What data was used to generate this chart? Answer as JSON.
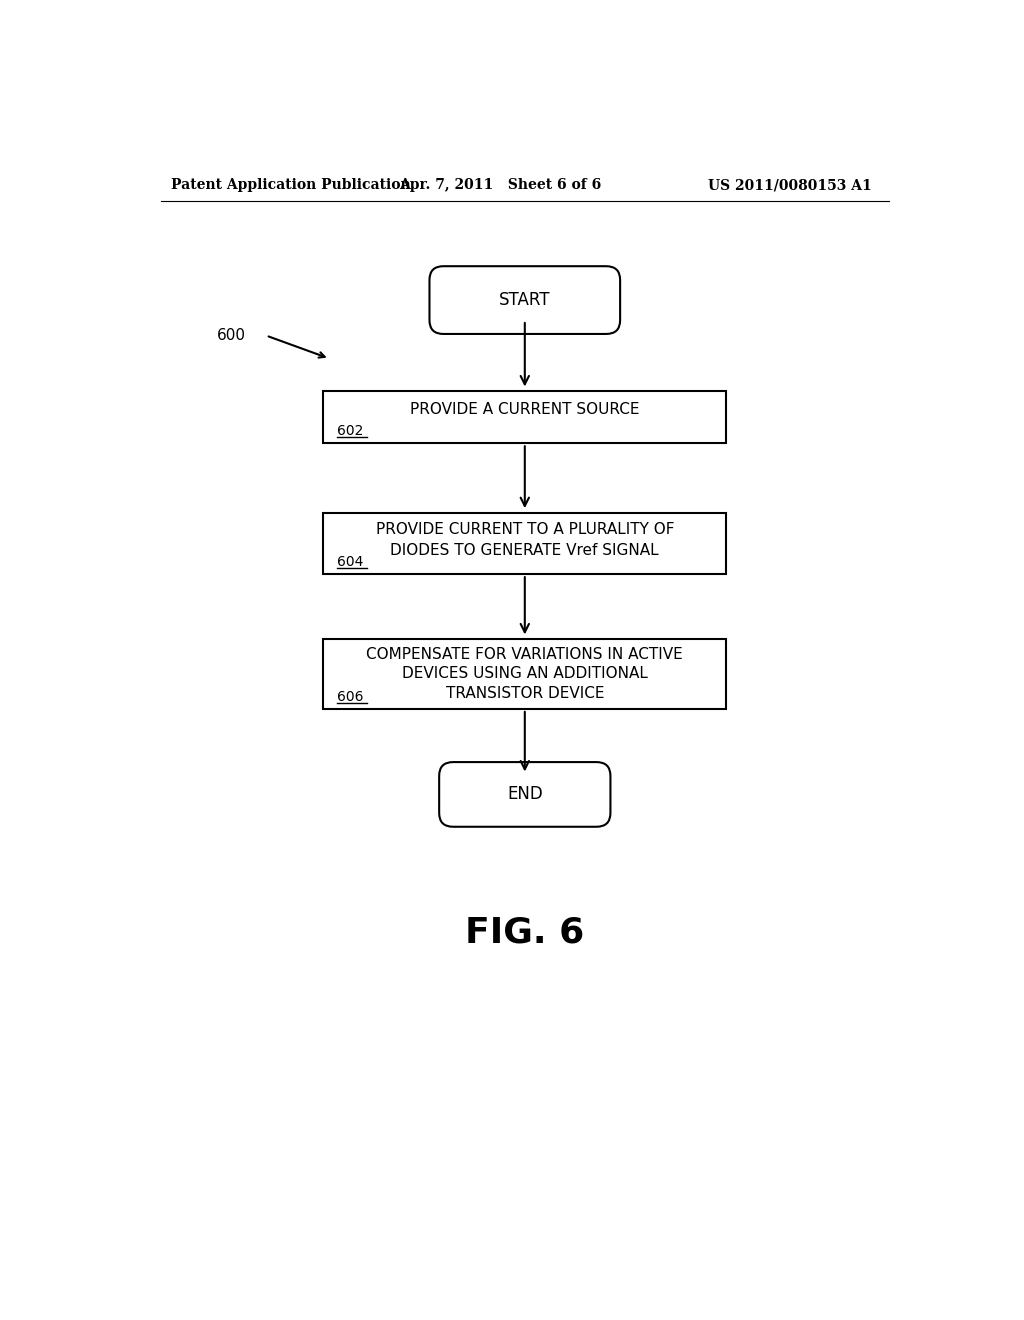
{
  "background_color": "#ffffff",
  "header_left": "Patent Application Publication",
  "header_center": "Apr. 7, 2011   Sheet 6 of 6",
  "header_right": "US 2011/0080153 A1",
  "header_fontsize": 10,
  "fig_label": "FIG. 6",
  "fig_label_fontsize": 26,
  "diagram_label": "600",
  "start_text": "START",
  "end_text": "END",
  "box1_text": "PROVIDE A CURRENT SOURCE",
  "box1_label": "602",
  "box2_line1": "PROVIDE CURRENT TO A PLURALITY OF",
  "box2_line2": "DIODES TO GENERATE Vref SIGNAL",
  "box2_label": "604",
  "box3_line1": "COMPENSATE FOR VARIATIONS IN ACTIVE",
  "box3_line2": "DEVICES USING AN ADDITIONAL",
  "box3_line3": "TRANSISTOR DEVICE",
  "box3_label": "606",
  "text_color": "#000000",
  "box_edge_color": "#000000",
  "box_face_color": "#ffffff",
  "arrow_color": "#000000",
  "line_width": 1.5
}
